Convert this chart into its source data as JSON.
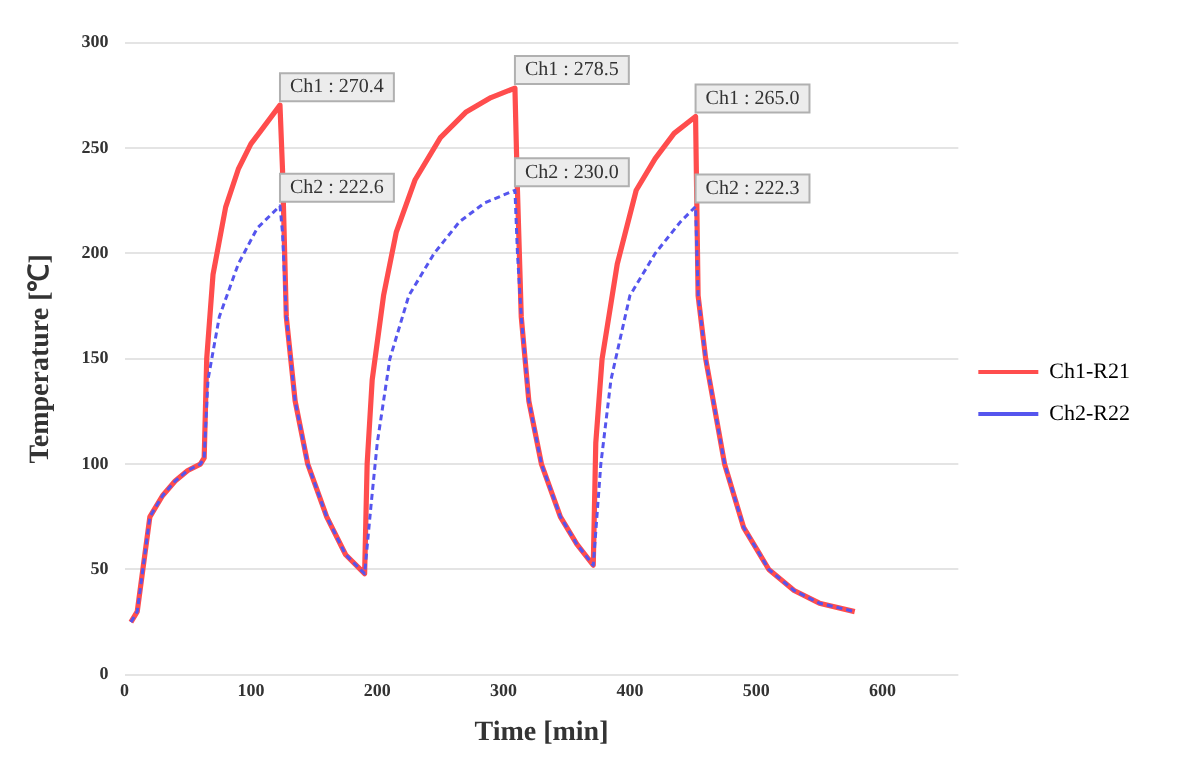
{
  "chart_data": {
    "type": "line",
    "xlabel": "Time [min]",
    "ylabel": "Temperature [℃]",
    "xlim": [
      0,
      660
    ],
    "xticks": [
      0,
      100,
      200,
      300,
      400,
      500,
      600
    ],
    "ylim": [
      0,
      300
    ],
    "yticks": [
      0,
      50,
      100,
      150,
      200,
      250,
      300
    ],
    "grid": "y",
    "legend": "right",
    "marker": "none",
    "series": [
      {
        "name": "Ch1-R21",
        "color": "#ff4d4d",
        "line_style": "solid",
        "x": [
          5,
          10,
          20,
          30,
          40,
          50,
          60,
          63,
          65,
          70,
          80,
          90,
          100,
          110,
          123,
          125,
          128,
          135,
          145,
          160,
          175,
          190,
          192,
          196,
          205,
          215,
          230,
          250,
          270,
          290,
          309,
          311,
          314,
          320,
          330,
          345,
          358,
          371,
          373,
          378,
          390,
          405,
          420,
          435,
          452,
          454,
          460,
          475,
          490,
          510,
          530,
          550,
          578
        ],
        "values": [
          25,
          30,
          75,
          85,
          92,
          97,
          100,
          103,
          150,
          190,
          222,
          240,
          252,
          260,
          270.4,
          240,
          170,
          130,
          100,
          75,
          57,
          48,
          100,
          140,
          180,
          210,
          235,
          255,
          267,
          274,
          278.5,
          230,
          170,
          130,
          100,
          75,
          62,
          52,
          110,
          150,
          195,
          230,
          245,
          257,
          265,
          180,
          150,
          100,
          70,
          50,
          40,
          34,
          30
        ]
      },
      {
        "name": "Ch2-R22",
        "color": "#5555ee",
        "line_style": "dashed",
        "x": [
          5,
          10,
          20,
          30,
          40,
          50,
          60,
          63,
          66,
          75,
          90,
          105,
          123,
          125,
          128,
          135,
          145,
          160,
          175,
          190,
          195,
          200,
          210,
          225,
          245,
          265,
          285,
          309,
          311,
          314,
          320,
          330,
          345,
          358,
          371,
          377,
          385,
          400,
          420,
          440,
          452,
          454,
          460,
          475,
          490,
          510,
          530,
          550,
          578
        ],
        "values": [
          25,
          30,
          75,
          85,
          92,
          97,
          100,
          103,
          140,
          170,
          195,
          212,
          222.6,
          210,
          170,
          130,
          100,
          75,
          57,
          48,
          80,
          110,
          150,
          180,
          200,
          215,
          224,
          230,
          200,
          170,
          130,
          100,
          75,
          62,
          52,
          100,
          140,
          180,
          200,
          215,
          222.3,
          180,
          150,
          100,
          70,
          50,
          40,
          34,
          30
        ]
      }
    ],
    "annotations": [
      {
        "text": "Ch1 : 270.4",
        "x": 123,
        "y": 270.4
      },
      {
        "text": "Ch2 : 222.6",
        "x": 123,
        "y": 222.6
      },
      {
        "text": "Ch1 : 278.5",
        "x": 309,
        "y": 278.5
      },
      {
        "text": "Ch2 : 230.0",
        "x": 309,
        "y": 230
      },
      {
        "text": "Ch1 : 265.0",
        "x": 452,
        "y": 265
      },
      {
        "text": "Ch2 : 222.3",
        "x": 452,
        "y": 222.3
      }
    ]
  }
}
